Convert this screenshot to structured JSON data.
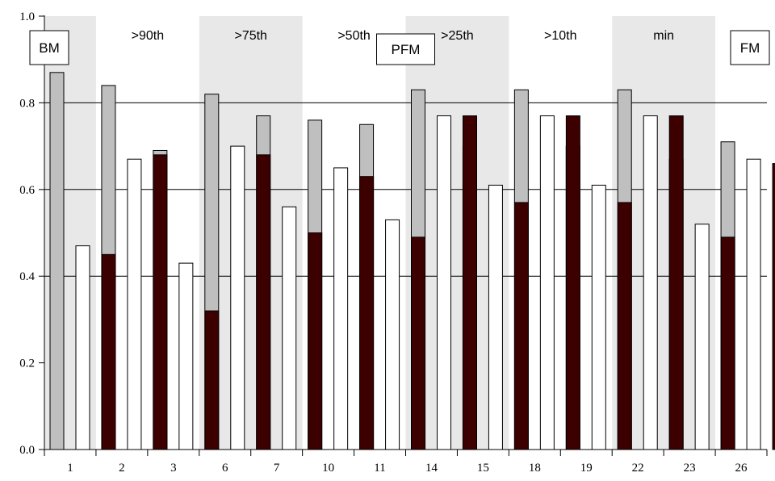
{
  "chart_data": {
    "type": "bar",
    "categories": [
      "1",
      "2",
      "3",
      "6",
      "7",
      "10",
      "11",
      "14",
      "15",
      "18",
      "19",
      "22",
      "23",
      "26"
    ],
    "series": [
      {
        "values": [
          0.87,
          0.84,
          0.69,
          0.82,
          0.77,
          0.76,
          0.75,
          0.83,
          0.7,
          0.83,
          0.7,
          0.83,
          0.67,
          0.71
        ]
      },
      {
        "values": [
          0.47,
          0.67,
          0.43,
          0.7,
          0.56,
          0.65,
          0.53,
          0.77,
          0.61,
          0.77,
          0.61,
          0.77,
          0.52,
          0.67
        ]
      },
      {
        "values": [
          0.45,
          0.68,
          0.32,
          0.68,
          0.5,
          0.63,
          0.49,
          0.77,
          0.57,
          0.77,
          0.57,
          0.77,
          0.49,
          0.66
        ]
      }
    ],
    "series_colors": [
      "#bfbfbf",
      "#ffffff",
      "#3d0000"
    ],
    "ylim": [
      0.0,
      1.0
    ],
    "yticks": [
      "0.0",
      "0.2",
      "0.4",
      "0.6",
      "0.8",
      "1.0"
    ],
    "gridlines": [
      0.4,
      0.6,
      0.8
    ],
    "bands": [
      {
        "label": "",
        "start": 0,
        "end": 0,
        "shaded": true
      },
      {
        "label": ">90th",
        "start": 1,
        "end": 2,
        "shaded": false
      },
      {
        "label": ">75th",
        "start": 3,
        "end": 4,
        "shaded": true
      },
      {
        "label": ">50th",
        "start": 5,
        "end": 6,
        "shaded": false
      },
      {
        "label": ">25th",
        "start": 7,
        "end": 8,
        "shaded": true
      },
      {
        "label": ">10th",
        "start": 9,
        "end": 10,
        "shaded": false
      },
      {
        "label": "min",
        "start": 11,
        "end": 12,
        "shaded": true
      },
      {
        "label": "",
        "start": 13,
        "end": 13,
        "shaded": false
      }
    ],
    "boxes": [
      {
        "label": "BM",
        "anchor": 0
      },
      {
        "label": "PFM",
        "anchor": 7
      },
      {
        "label": "FM",
        "anchor": 14
      }
    ],
    "band_color": "#e8e8e8"
  }
}
